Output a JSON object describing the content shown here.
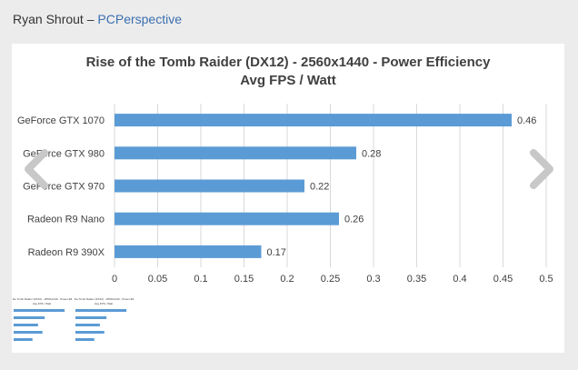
{
  "credit": {
    "author": "Ryan Shrout",
    "separator": "–",
    "site": "PCPerspective"
  },
  "carousel": {
    "prev_icon": "chevron-left-icon",
    "next_icon": "chevron-right-icon"
  },
  "thumbnails": [
    {
      "title": "Rise of the Tomb Raider (DX12) - 2560x1440 - Power Efficiency",
      "subtitle": "Avg FPS / Watt"
    },
    {
      "title": "Rise of the Tomb Raider (DX12) - 2560x1440 - Power Efficiency",
      "subtitle": "Avg FPS / Watt"
    }
  ],
  "chart_data": {
    "type": "bar",
    "orientation": "horizontal",
    "title": "Rise of the Tomb Raider (DX12) - 2560x1440 - Power Efficiency",
    "subtitle": "Avg FPS / Watt",
    "categories": [
      "GeForce GTX 1070",
      "GeForce GTX 980",
      "GeForce GTX 970",
      "Radeon R9 Nano",
      "Radeon R9 390X"
    ],
    "values": [
      0.46,
      0.28,
      0.22,
      0.26,
      0.17
    ],
    "xlim": [
      0,
      0.5
    ],
    "ticks": [
      "0",
      "0.05",
      "0.1",
      "0.15",
      "0.2",
      "0.25",
      "0.3",
      "0.35",
      "0.4",
      "0.45",
      "0.5"
    ],
    "grid": true,
    "bar_color": "#5b9bd5",
    "grid_color": "#d9d9d9",
    "text_color": "#404040",
    "legend": "none"
  }
}
